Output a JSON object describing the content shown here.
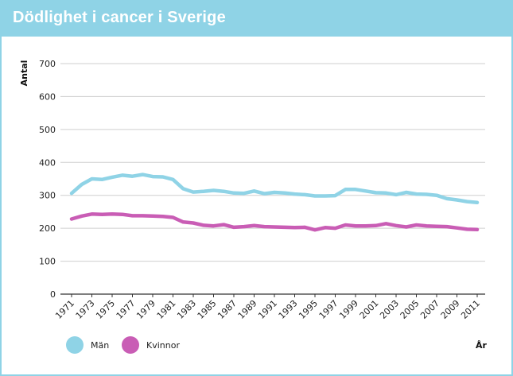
{
  "chart_data": {
    "type": "line",
    "title": "Dödlighet i cancer i Sverige",
    "ylabel": "Antal",
    "xlabel": "År",
    "ylim": [
      0,
      700
    ],
    "yticks": [
      0,
      100,
      200,
      300,
      400,
      500,
      600,
      700
    ],
    "grid": true,
    "legend_position": "bottom-left",
    "x": [
      1971,
      1972,
      1973,
      1974,
      1975,
      1976,
      1977,
      1978,
      1979,
      1980,
      1981,
      1982,
      1983,
      1984,
      1985,
      1986,
      1987,
      1988,
      1989,
      1990,
      1991,
      1992,
      1993,
      1994,
      1995,
      1996,
      1997,
      1998,
      1999,
      2000,
      2001,
      2002,
      2003,
      2004,
      2005,
      2006,
      2007,
      2008,
      2009,
      2010,
      2011
    ],
    "x_tick_labels": [
      "1971",
      "1973",
      "1975",
      "1977",
      "1979",
      "1981",
      "1983",
      "1985",
      "1987",
      "1989",
      "1991",
      "1993",
      "1995",
      "1997",
      "1999",
      "2001",
      "2003",
      "2005",
      "2007",
      "2009",
      "2011"
    ],
    "series": [
      {
        "name": "Män",
        "color": "#8fd3e6",
        "values": [
          306,
          333,
          350,
          348,
          355,
          361,
          358,
          363,
          357,
          356,
          348,
          320,
          310,
          312,
          315,
          312,
          307,
          306,
          313,
          305,
          309,
          307,
          304,
          302,
          298,
          298,
          299,
          318,
          318,
          313,
          308,
          307,
          302,
          309,
          304,
          303,
          300,
          290,
          286,
          281,
          278
        ]
      },
      {
        "name": "Kvinnor",
        "color": "#c95db5",
        "values": [
          228,
          237,
          243,
          242,
          243,
          242,
          238,
          238,
          237,
          236,
          233,
          219,
          216,
          209,
          207,
          211,
          203,
          205,
          208,
          205,
          204,
          203,
          202,
          203,
          195,
          202,
          200,
          210,
          207,
          207,
          208,
          214,
          208,
          204,
          210,
          207,
          206,
          205,
          201,
          197,
          196
        ]
      }
    ]
  }
}
